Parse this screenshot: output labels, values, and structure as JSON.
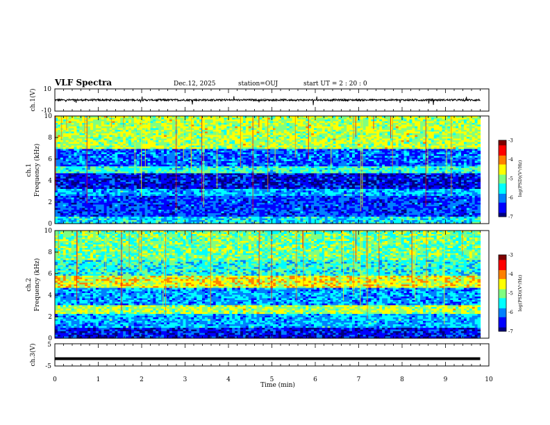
{
  "header": {
    "title": "VLF Spectra",
    "date": "Dec.12, 2025",
    "station": "station=OUJ",
    "start": "start  UT  =   2  : 20 : 0"
  },
  "chart_data": [
    {
      "type": "line",
      "panel": "ch1-waveform",
      "ylabel": "ch.1(V)",
      "ylim": [
        -10,
        10
      ],
      "yticks": [
        "10",
        "-10"
      ],
      "xlim": [
        0,
        10
      ],
      "baseline": 0,
      "series": [
        {
          "values": []
        }
      ],
      "color": "#000000"
    },
    {
      "type": "heatmap",
      "panel": "ch1-spectrogram",
      "ylabel": "ch.1",
      "ylabel2": "Frequency  (kHz)",
      "ylim": [
        0,
        10
      ],
      "yticks": [
        "0",
        "2",
        "4",
        "6",
        "8",
        "10"
      ],
      "xlim": [
        0,
        10
      ],
      "data_end_min": 9.8,
      "colorbar": {
        "label": "log(PSD)(V²/Hz)",
        "ticks": [
          "-3",
          "-4",
          "-5",
          "-6",
          "-7"
        ],
        "range": [
          -7,
          -3
        ]
      },
      "colormap": [
        "#00007f",
        "#0000ff",
        "#0080ff",
        "#00ffff",
        "#80ff80",
        "#ffff00",
        "#ff8000",
        "#ff0000",
        "#7f0000"
      ]
    },
    {
      "type": "heatmap",
      "panel": "ch2-spectrogram",
      "ylabel": "ch.2",
      "ylabel2": "Frequency  (kHz)",
      "ylim": [
        0,
        10
      ],
      "yticks": [
        "0",
        "2",
        "4",
        "6",
        "8",
        "10"
      ],
      "xlim": [
        0,
        10
      ],
      "data_end_min": 9.8,
      "colorbar": {
        "label": "log(PSD)(V²/Hz)",
        "ticks": [
          "-3",
          "-4",
          "-5",
          "-6",
          "-7"
        ],
        "range": [
          -7,
          -3
        ]
      },
      "colormap": [
        "#00007f",
        "#0000ff",
        "#0080ff",
        "#00ffff",
        "#80ff80",
        "#ffff00",
        "#ff8000",
        "#ff0000",
        "#7f0000"
      ]
    },
    {
      "type": "line",
      "panel": "ch3-waveform",
      "ylabel": "ch.3(V)",
      "ylim": [
        -5,
        5
      ],
      "yticks": [
        "5",
        "-5"
      ],
      "xlim": [
        0,
        10
      ],
      "series": [
        {
          "values": []
        }
      ],
      "level": -1.7,
      "color": "#000000"
    }
  ],
  "xaxis": {
    "label": "Time  (min)",
    "ticks": [
      "0",
      "1",
      "2",
      "3",
      "4",
      "5",
      "6",
      "7",
      "8",
      "9",
      "10"
    ],
    "range": [
      0,
      10
    ]
  }
}
